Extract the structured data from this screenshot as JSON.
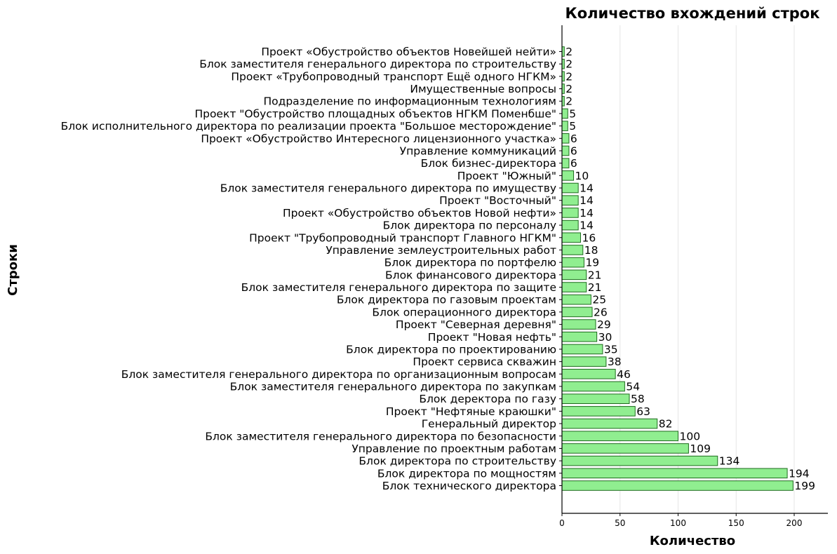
{
  "chart_data": {
    "type": "bar",
    "orientation": "horizontal",
    "title": "Количество вхождений строк",
    "xlabel": "Количество",
    "ylabel": "Строки",
    "xlim": [
      0,
      229
    ],
    "xticks": [
      0,
      50,
      100,
      150,
      200
    ],
    "grid": "x",
    "bar_color": "#90ee90",
    "bar_edge_color": "#1e6b1e",
    "categories": [
      "Проект «Обустройство объектов Новейшей нейти»",
      "Блок заместителя генерального директора по строительству",
      "Проект «Трубопроводный транспорт Ещё одного НГКМ»",
      "Имущественные вопросы",
      "Подразделение по информационным технологиям",
      "Проект \"Обустройство площадных объектов НГКМ Поменбше\"",
      "Блок исполнительного директора по реализации проекта \"Большое месторождение\"",
      "Проект «Обустройство Интересного лицензионного участка»",
      "Управление коммуникаций",
      "Блок бизнес-директора",
      "Проект \"Южный\"",
      "Блок заместителя генерального директора по имуществу",
      "Проект \"Восточный\"",
      "Проект «Обустройство объектов Новой нефти»",
      "Блок директора по персоналу",
      "Проект \"Трубопроводный транспорт Главного НГКМ\"",
      "Управление землеустроительных работ",
      "Блок директора по портфелю",
      "Блок финансового директора",
      "Блок заместителя генерального директора по защите",
      "Блок директора по газовым проектам",
      "Блок операционного директора",
      "Проект \"Северная деревня\"",
      "Проект \"Новая нефть\"",
      "Блок директора по проектированию",
      "Проект сервиса скважин",
      "Блок заместителя генерального директора по организационным вопросам",
      "Блок заместителя генерального директора по закупкам",
      "Блок деректора по газу",
      "Проект \"Нефтяные краюшки\"",
      "Генеральный директор",
      "Блок заместителя генерального директора по безопасности",
      "Управление по проектным работам",
      "Блок директора по строительству",
      "Блок директора по мощностям",
      "Блок технического директора"
    ],
    "values": [
      2,
      2,
      2,
      2,
      2,
      5,
      5,
      6,
      6,
      6,
      10,
      14,
      14,
      14,
      14,
      16,
      18,
      19,
      21,
      21,
      25,
      26,
      29,
      30,
      35,
      38,
      46,
      54,
      58,
      63,
      82,
      100,
      109,
      134,
      194,
      199
    ]
  }
}
